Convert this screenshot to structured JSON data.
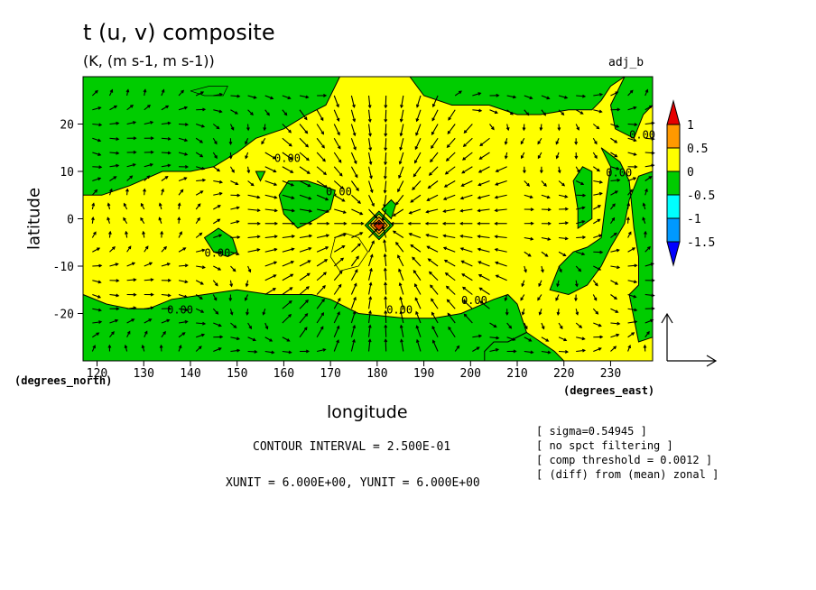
{
  "header": {
    "title": "t (u, v) composite",
    "subtitle": "(K, (m s-1, m s-1))",
    "run_tag": "adj_b"
  },
  "axes": {
    "xlabel": "longitude",
    "ylabel": "latitude",
    "xunit": "(degrees_east)",
    "yunit": "(degrees_north)"
  },
  "footer": {
    "contour_interval": "CONTOUR INTERVAL = 2.500E-01",
    "xy_unit": "XUNIT = 6.000E+00, YUNIT = 6.000E+00",
    "notes": [
      "[ sigma=0.54945 ]",
      "[ no spct filtering ]",
      "[ comp threshold = 0.0012 ]",
      "[ (diff) from (mean) zonal ]"
    ]
  },
  "contour_labels": [
    "0.00",
    "0.00",
    "0.00",
    "0.00",
    "0.00",
    "0.00",
    "0.00",
    "0.00"
  ],
  "chart_data": {
    "type": "heatmap",
    "title": "t (u, v) composite",
    "subtitle": "(K, (m s-1, m s-1))",
    "xlabel": "longitude",
    "ylabel": "latitude",
    "xlim": [
      117,
      239
    ],
    "ylim": [
      -30,
      30
    ],
    "xticks": [
      120,
      130,
      140,
      150,
      160,
      170,
      180,
      190,
      200,
      210,
      220,
      230
    ],
    "yticks": [
      -20,
      -10,
      0,
      10,
      20
    ],
    "grid": false,
    "colorbar": {
      "ticks": [
        "1",
        "0.5",
        "0",
        "-0.5",
        "-1",
        "-1.5"
      ],
      "levels": [
        {
          "range": [
            1,
            1.5
          ],
          "color": "#e60000"
        },
        {
          "range": [
            0.5,
            1
          ],
          "color": "#ff9900"
        },
        {
          "range": [
            0,
            0.5
          ],
          "color": "#ffff00"
        },
        {
          "range": [
            -0.5,
            0
          ],
          "color": "#00cc00"
        },
        {
          "range": [
            -1,
            -0.5
          ],
          "color": "#00ffff"
        },
        {
          "range": [
            -1.5,
            -1
          ],
          "color": "#0099ff"
        },
        {
          "range": [
            -2,
            -1.5
          ],
          "color": "#0000ff"
        }
      ],
      "legend_position": "right"
    },
    "background_value_color": "#ffff00",
    "negative_regions_color": "#00cc00",
    "vector_field": "wind (u, v) arrows over the whole domain, converging toward ~181E, 0N",
    "reference_vector": "bottom-right"
  }
}
